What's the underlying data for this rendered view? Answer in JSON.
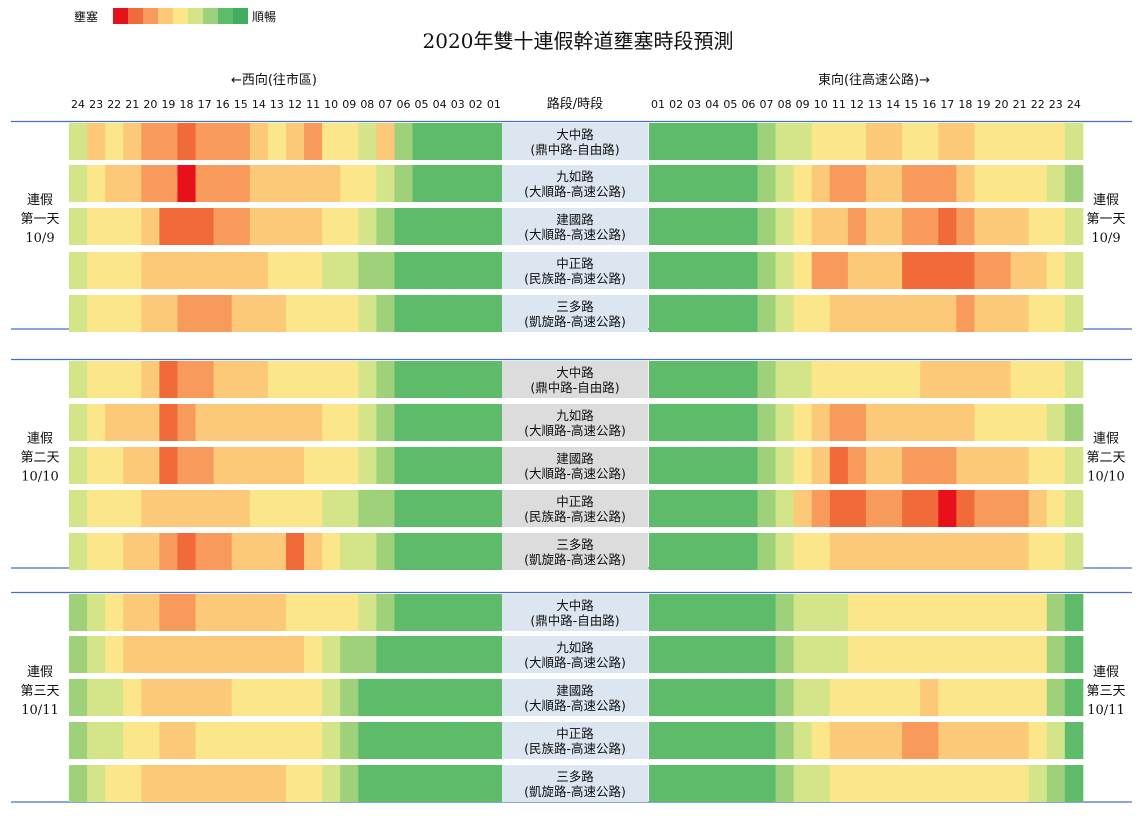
{
  "title": "2020年雙十連假幹道壅塞時段預測",
  "legend": {
    "left_label": "壅塞",
    "right_label": "順暢",
    "colors": [
      "#e8111b",
      "#f06a3a",
      "#f79a5b",
      "#fbc978",
      "#fbe68a",
      "#d4e489",
      "#9fd17a",
      "#5dbb6a",
      "#3fae60"
    ]
  },
  "headers": {
    "west": "←西向(往市區)",
    "east": "東向(往高速公路)→",
    "center": "路段/時段"
  },
  "west_hours": [
    "24",
    "23",
    "22",
    "21",
    "20",
    "19",
    "18",
    "17",
    "16",
    "15",
    "14",
    "13",
    "12",
    "11",
    "10",
    "09",
    "08",
    "07",
    "06",
    "05",
    "04",
    "03",
    "02",
    "01"
  ],
  "east_hours": [
    "01",
    "02",
    "03",
    "04",
    "05",
    "06",
    "07",
    "08",
    "09",
    "10",
    "11",
    "12",
    "13",
    "14",
    "15",
    "16",
    "17",
    "18",
    "19",
    "20",
    "21",
    "22",
    "23",
    "24"
  ],
  "chart_data": {
    "type": "heatmap",
    "title": "2020年雙十連假幹道壅塞時段預測",
    "value_scale": "0 = 順暢 ... 8 = 壅塞",
    "days": [
      {
        "label_line1": "連假",
        "label_line2": "第一天",
        "date": "10/9",
        "roads": [
          {
            "name": "大中路",
            "range": "(鼎中路-自由路)",
            "west": [
              2,
              4,
              3,
              4,
              5,
              5,
              6,
              5,
              5,
              5,
              4,
              3,
              4,
              5,
              3,
              3,
              2,
              4,
              1,
              0,
              0,
              0,
              0,
              0
            ],
            "east": [
              0,
              0,
              0,
              0,
              0,
              0,
              1,
              2,
              2,
              3,
              3,
              3,
              4,
              4,
              3,
              3,
              4,
              4,
              3,
              3,
              3,
              3,
              3,
              2
            ]
          },
          {
            "name": "九如路",
            "range": "(大順路-高速公路)",
            "west": [
              2,
              3,
              4,
              4,
              5,
              5,
              7,
              5,
              5,
              5,
              4,
              4,
              4,
              4,
              4,
              3,
              3,
              2,
              1,
              0,
              0,
              0,
              0,
              0
            ],
            "east": [
              0,
              0,
              0,
              0,
              0,
              0,
              1,
              2,
              3,
              4,
              5,
              5,
              4,
              4,
              5,
              5,
              5,
              4,
              3,
              3,
              3,
              3,
              2,
              1
            ]
          },
          {
            "name": "建國路",
            "range": "(大順路-高速公路)",
            "west": [
              2,
              3,
              3,
              3,
              4,
              6,
              6,
              6,
              5,
              5,
              4,
              4,
              4,
              4,
              3,
              3,
              2,
              1,
              0,
              0,
              0,
              0,
              0,
              0
            ],
            "east": [
              0,
              0,
              0,
              0,
              0,
              0,
              1,
              2,
              3,
              4,
              4,
              5,
              4,
              4,
              5,
              5,
              6,
              5,
              4,
              4,
              4,
              3,
              3,
              2
            ]
          },
          {
            "name": "中正路",
            "range": "(民族路-高速公路)",
            "west": [
              2,
              3,
              3,
              3,
              4,
              4,
              4,
              4,
              4,
              4,
              4,
              3,
              3,
              3,
              2,
              2,
              1,
              1,
              0,
              0,
              0,
              0,
              0,
              0
            ],
            "east": [
              0,
              0,
              0,
              0,
              0,
              0,
              1,
              2,
              3,
              5,
              5,
              4,
              4,
              4,
              6,
              6,
              6,
              6,
              5,
              5,
              4,
              4,
              3,
              2
            ]
          },
          {
            "name": "三多路",
            "range": "(凱旋路-高速公路)",
            "west": [
              2,
              3,
              3,
              3,
              4,
              4,
              5,
              5,
              5,
              4,
              4,
              4,
              3,
              3,
              3,
              3,
              2,
              1,
              0,
              0,
              0,
              0,
              0,
              0
            ],
            "east": [
              0,
              0,
              0,
              0,
              0,
              0,
              1,
              2,
              3,
              3,
              4,
              4,
              4,
              4,
              4,
              4,
              4,
              5,
              4,
              4,
              4,
              3,
              3,
              2
            ]
          }
        ]
      },
      {
        "label_line1": "連假",
        "label_line2": "第二天",
        "date": "10/10",
        "roads": [
          {
            "name": "大中路",
            "range": "(鼎中路-自由路)",
            "west": [
              2,
              3,
              3,
              3,
              4,
              6,
              5,
              5,
              4,
              4,
              4,
              3,
              3,
              3,
              3,
              3,
              2,
              1,
              0,
              0,
              0,
              0,
              0,
              0
            ],
            "east": [
              0,
              0,
              0,
              0,
              0,
              0,
              1,
              2,
              2,
              3,
              3,
              3,
              3,
              3,
              3,
              4,
              4,
              4,
              4,
              4,
              3,
              3,
              3,
              2
            ]
          },
          {
            "name": "九如路",
            "range": "(大順路-高速公路)",
            "west": [
              2,
              3,
              4,
              4,
              4,
              6,
              5,
              4,
              4,
              4,
              4,
              4,
              4,
              4,
              3,
              3,
              2,
              1,
              0,
              0,
              0,
              0,
              0,
              0
            ],
            "east": [
              0,
              0,
              0,
              0,
              0,
              0,
              1,
              2,
              3,
              4,
              5,
              5,
              4,
              4,
              4,
              4,
              4,
              4,
              3,
              3,
              3,
              3,
              2,
              1
            ]
          },
          {
            "name": "建國路",
            "range": "(大順路-高速公路)",
            "west": [
              2,
              3,
              3,
              4,
              4,
              6,
              5,
              5,
              4,
              4,
              4,
              4,
              4,
              3,
              3,
              3,
              2,
              1,
              0,
              0,
              0,
              0,
              0,
              0
            ],
            "east": [
              0,
              0,
              0,
              0,
              0,
              0,
              1,
              2,
              3,
              4,
              6,
              5,
              4,
              4,
              5,
              5,
              5,
              4,
              4,
              4,
              4,
              3,
              3,
              2
            ]
          },
          {
            "name": "中正路",
            "range": "(民族路-高速公路)",
            "west": [
              2,
              3,
              3,
              3,
              4,
              4,
              4,
              4,
              4,
              4,
              3,
              3,
              3,
              3,
              2,
              2,
              1,
              1,
              0,
              0,
              0,
              0,
              0,
              0
            ],
            "east": [
              0,
              0,
              0,
              0,
              0,
              0,
              1,
              2,
              4,
              5,
              6,
              6,
              5,
              5,
              6,
              6,
              7,
              6,
              5,
              5,
              5,
              4,
              3,
              2
            ]
          },
          {
            "name": "三多路",
            "range": "(凱旋路-高速公路)",
            "west": [
              2,
              3,
              3,
              4,
              4,
              5,
              6,
              5,
              5,
              4,
              4,
              4,
              6,
              4,
              3,
              2,
              2,
              1,
              0,
              0,
              0,
              0,
              0,
              0
            ],
            "east": [
              0,
              0,
              0,
              0,
              0,
              0,
              1,
              2,
              3,
              3,
              4,
              4,
              4,
              4,
              4,
              4,
              4,
              4,
              4,
              4,
              4,
              3,
              3,
              2
            ]
          }
        ]
      },
      {
        "label_line1": "連假",
        "label_line2": "第三天",
        "date": "10/11",
        "roads": [
          {
            "name": "大中路",
            "range": "(鼎中路-自由路)",
            "west": [
              1,
              2,
              3,
              4,
              4,
              5,
              5,
              4,
              4,
              4,
              4,
              4,
              3,
              3,
              3,
              3,
              2,
              1,
              0,
              0,
              0,
              0,
              0,
              0
            ],
            "east": [
              0,
              0,
              0,
              0,
              0,
              0,
              0,
              1,
              2,
              2,
              2,
              3,
              3,
              3,
              3,
              3,
              3,
              3,
              3,
              3,
              3,
              3,
              1,
              0
            ]
          },
          {
            "name": "九如路",
            "range": "(大順路-高速公路)",
            "west": [
              1,
              2,
              3,
              4,
              4,
              4,
              4,
              4,
              4,
              4,
              4,
              4,
              4,
              3,
              2,
              1,
              1,
              0,
              0,
              0,
              0,
              0,
              0,
              0
            ],
            "east": [
              0,
              0,
              0,
              0,
              0,
              0,
              0,
              1,
              2,
              2,
              2,
              3,
              3,
              3,
              3,
              3,
              3,
              3,
              3,
              3,
              3,
              3,
              1,
              0
            ]
          },
          {
            "name": "建國路",
            "range": "(大順路-高速公路)",
            "west": [
              1,
              2,
              2,
              3,
              4,
              4,
              4,
              4,
              4,
              3,
              3,
              3,
              3,
              3,
              2,
              1,
              0,
              0,
              0,
              0,
              0,
              0,
              0,
              0
            ],
            "east": [
              0,
              0,
              0,
              0,
              0,
              0,
              0,
              1,
              2,
              2,
              3,
              3,
              3,
              3,
              3,
              4,
              3,
              3,
              3,
              3,
              3,
              3,
              1,
              0
            ]
          },
          {
            "name": "中正路",
            "range": "(民族路-高速公路)",
            "west": [
              1,
              2,
              2,
              3,
              3,
              4,
              4,
              3,
              3,
              3,
              3,
              3,
              3,
              3,
              2,
              1,
              0,
              0,
              0,
              0,
              0,
              0,
              0,
              0
            ],
            "east": [
              0,
              0,
              0,
              0,
              0,
              0,
              0,
              1,
              2,
              3,
              4,
              4,
              4,
              4,
              5,
              5,
              4,
              4,
              4,
              4,
              4,
              3,
              2,
              0
            ]
          },
          {
            "name": "三多路",
            "range": "(凱旋路-高速公路)",
            "west": [
              1,
              2,
              3,
              3,
              4,
              4,
              4,
              4,
              4,
              4,
              4,
              4,
              3,
              3,
              2,
              1,
              0,
              0,
              0,
              0,
              0,
              0,
              0,
              0
            ],
            "east": [
              0,
              0,
              0,
              0,
              0,
              0,
              0,
              1,
              2,
              2,
              3,
              3,
              3,
              3,
              3,
              3,
              3,
              3,
              3,
              3,
              3,
              2,
              1,
              0
            ]
          }
        ]
      }
    ]
  }
}
